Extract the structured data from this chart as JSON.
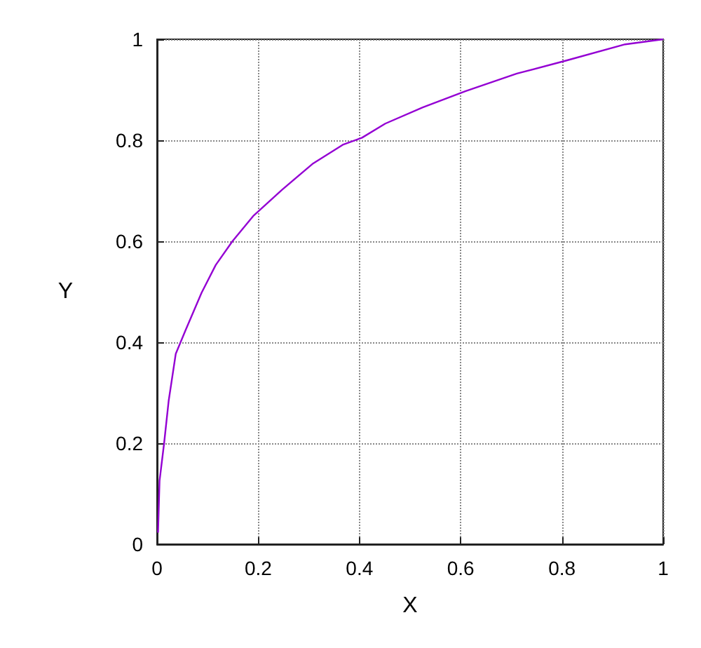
{
  "chart_data": {
    "type": "line",
    "xlabel": "X",
    "ylabel": "Y",
    "x": [
      0.002,
      0.005,
      0.014,
      0.023,
      0.037,
      0.056,
      0.088,
      0.116,
      0.149,
      0.191,
      0.247,
      0.307,
      0.367,
      0.405,
      0.451,
      0.525,
      0.609,
      0.711,
      0.809,
      0.925,
      1
    ],
    "series": [
      {
        "color": "#9400d3",
        "values": [
          0.023,
          0.126,
          0.2,
          0.284,
          0.377,
          0.423,
          0.498,
          0.553,
          0.6,
          0.651,
          0.702,
          0.753,
          0.791,
          0.805,
          0.833,
          0.865,
          0.897,
          0.932,
          0.958,
          0.99,
          1
        ]
      }
    ],
    "xlim": [
      0,
      1
    ],
    "ylim": [
      0,
      1
    ],
    "xticks": [
      0,
      0.2,
      0.4,
      0.6,
      0.8,
      1
    ],
    "yticks": [
      0,
      0.2,
      0.4,
      0.6,
      0.8,
      1
    ],
    "grid": true,
    "marker": "none",
    "line_style": "solid"
  }
}
